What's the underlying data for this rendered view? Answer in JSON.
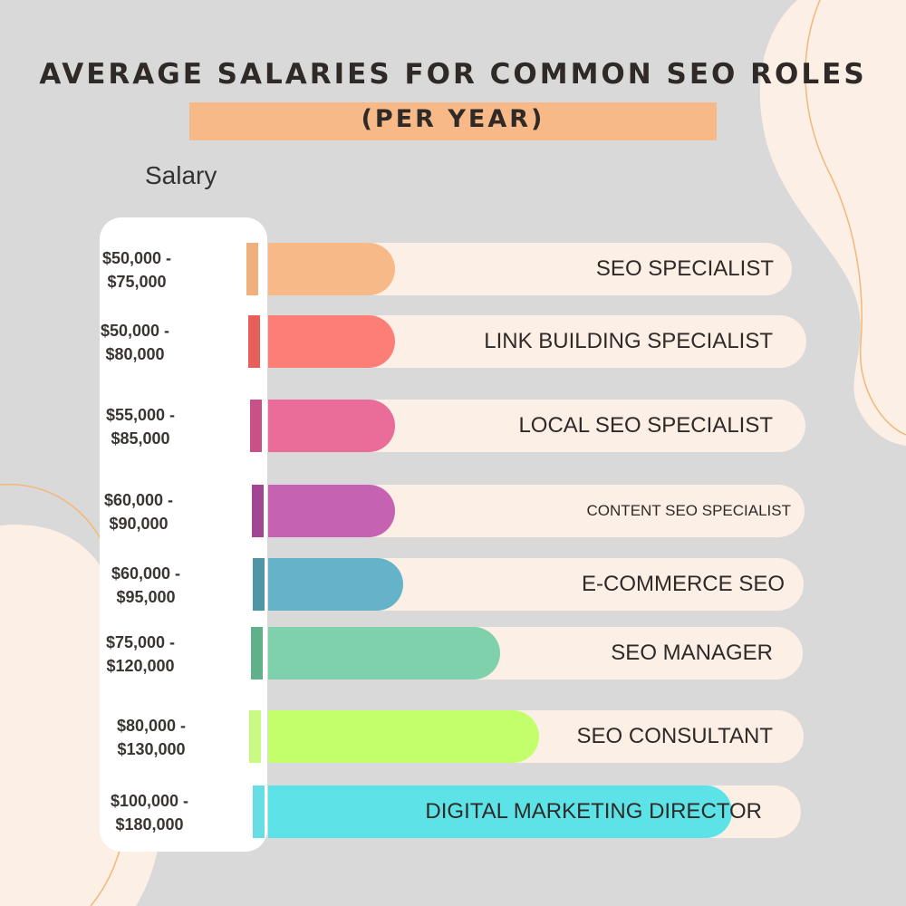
{
  "title": "AVERAGE SALARIES FOR COMMON SEO ROLES",
  "subtitle": "(PER YEAR)",
  "colors": {
    "background": "#d9d9d9",
    "blob": "#fcefe6",
    "title_band": "#f7b987",
    "panel": "#ffffff",
    "track": "#fcefe6",
    "curve": "#f2b877"
  },
  "chart_data": {
    "type": "bar",
    "orientation": "horizontal",
    "ylabel": "Salary",
    "categories": [
      "SEO SPECIALIST",
      "LINK BUILDING SPECIALIST",
      "LOCAL SEO SPECIALIST",
      "CONTENT SEO SPECIALIST",
      "E-COMMERCE SEO",
      "SEO MANAGER",
      "SEO CONSULTANT",
      "DIGITAL MARKETING DIRECTOR"
    ],
    "range_labels": [
      [
        "$50,000 -",
        "$75,000"
      ],
      [
        "$50,000 -",
        "$80,000"
      ],
      [
        "$55,000 -",
        "$85,000"
      ],
      [
        "$60,000 -",
        "$90,000"
      ],
      [
        "$60,000 -",
        "$95,000"
      ],
      [
        "$75,000 -",
        "$120,000"
      ],
      [
        "$80,000 -",
        "$130,000"
      ],
      [
        "$100,000 -",
        "$180,000"
      ]
    ],
    "values": [
      [
        50000,
        75000
      ],
      [
        50000,
        80000
      ],
      [
        55000,
        85000
      ],
      [
        60000,
        90000
      ],
      [
        60000,
        95000
      ],
      [
        75000,
        120000
      ],
      [
        80000,
        130000
      ],
      [
        100000,
        180000
      ]
    ],
    "colors": [
      "#f7b987",
      "#fd7e76",
      "#e96c99",
      "#c562b1",
      "#65b3c9",
      "#7fd1ab",
      "#c2ff6a",
      "#5ce3e8"
    ],
    "marker_colors": [
      "#f0b07d",
      "#e85e58",
      "#c8518a",
      "#a24594",
      "#4f95a6",
      "#5fb08b",
      "#c9fb84",
      "#67dee4"
    ]
  }
}
